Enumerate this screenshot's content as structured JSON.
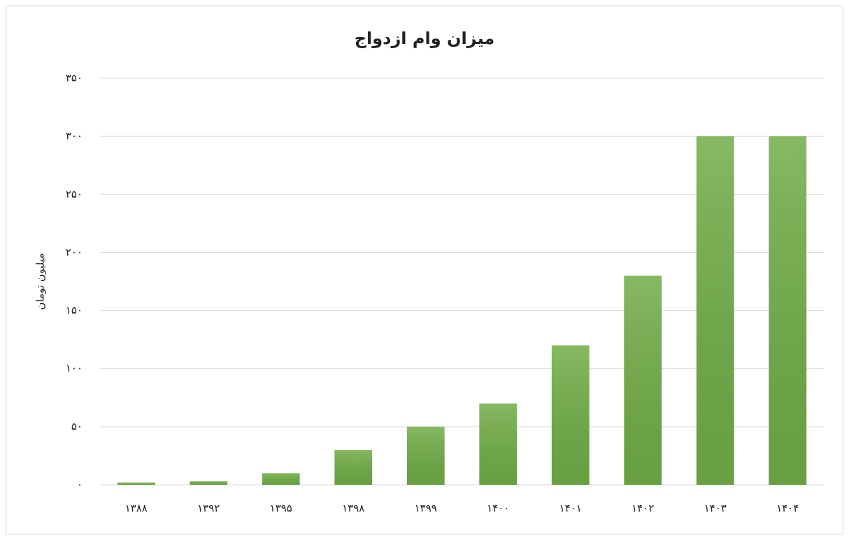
{
  "chart_data": {
    "type": "bar",
    "title": "میزان وام ازدواج",
    "y_label": "میلیون تومان",
    "categories": [
      "۱۳۸۸",
      "۱۳۹۲",
      "۱۳۹۵",
      "۱۳۹۸",
      "۱۳۹۹",
      "۱۴۰۰",
      "۱۴۰۱",
      "۱۴۰۲",
      "۱۴۰۳",
      "۱۴۰۴"
    ],
    "values": [
      2,
      3,
      10,
      30,
      50,
      70,
      120,
      180,
      300,
      300
    ],
    "color": "#70ad47",
    "ylim": [
      0,
      350
    ],
    "yticks": [
      {
        "value": 0,
        "label": "۰"
      },
      {
        "value": 50,
        "label": "۵۰"
      },
      {
        "value": 100,
        "label": "۱۰۰"
      },
      {
        "value": 150,
        "label": "۱۵۰"
      },
      {
        "value": 200,
        "label": "۲۰۰"
      },
      {
        "value": 250,
        "label": "۲۵۰"
      },
      {
        "value": 300,
        "label": "۳۰۰"
      },
      {
        "value": 350,
        "label": "۳۵۰"
      }
    ],
    "grid": true
  }
}
